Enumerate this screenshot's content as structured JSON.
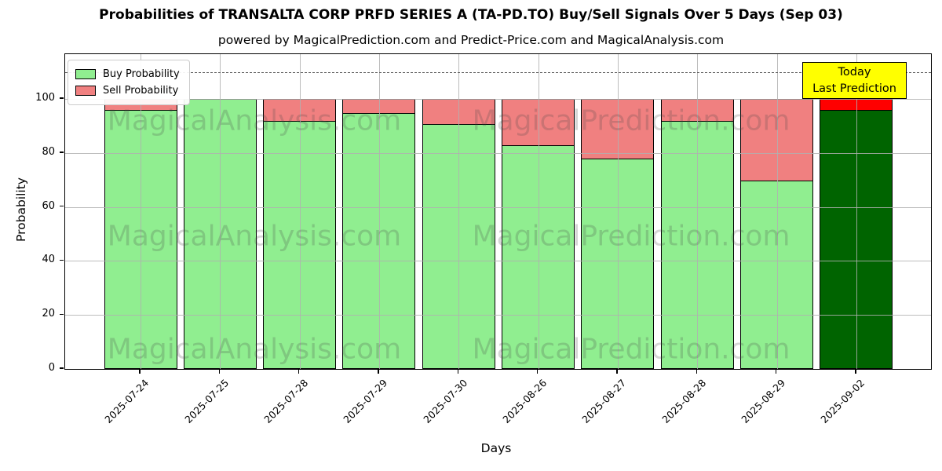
{
  "title": "Probabilities of TRANSALTA CORP PRFD SERIES A (TA-PD.TO) Buy/Sell Signals Over 5 Days (Sep 03)",
  "subtitle": "powered by MagicalPrediction.com and Predict-Price.com and MagicalAnalysis.com",
  "watermarks": {
    "left_text": "MagicalAnalysis.com",
    "right_text": "MagicalPrediction.com"
  },
  "annotation": {
    "line1": "Today",
    "line2": "Last Prediction",
    "bg_color": "#ffff00"
  },
  "legend": [
    {
      "label": "Buy Probability",
      "color": "#90ee90"
    },
    {
      "label": "Sell Probability",
      "color": "#f08080"
    }
  ],
  "chart_data": {
    "type": "bar",
    "stacked": true,
    "title": "Probabilities of TRANSALTA CORP PRFD SERIES A (TA-PD.TO) Buy/Sell Signals Over 5 Days (Sep 03)",
    "xlabel": "Days",
    "ylabel": "Probability",
    "categories": [
      "2025-07-24",
      "2025-07-25",
      "2025-07-28",
      "2025-07-29",
      "2025-07-30",
      "2025-08-26",
      "2025-08-27",
      "2025-08-28",
      "2025-08-29",
      "2025-09-02"
    ],
    "series": [
      {
        "name": "Buy Probability",
        "color": "#90ee90",
        "last_bar_color": "#006400",
        "values": [
          96,
          100,
          92,
          95,
          91,
          83,
          78,
          92,
          70,
          96
        ]
      },
      {
        "name": "Sell Probability",
        "color": "#f08080",
        "last_bar_color": "#ff0000",
        "values": [
          4,
          0,
          8,
          5,
          9,
          17,
          22,
          8,
          30,
          4
        ]
      }
    ],
    "bar_total": 100,
    "yticks": [
      0,
      20,
      40,
      60,
      80,
      100
    ],
    "ylim": [
      0,
      116.6
    ],
    "dashed_line_y": 110,
    "grid": true,
    "legend_position": "upper left",
    "last_bar_annotation": "Today / Last Prediction"
  }
}
